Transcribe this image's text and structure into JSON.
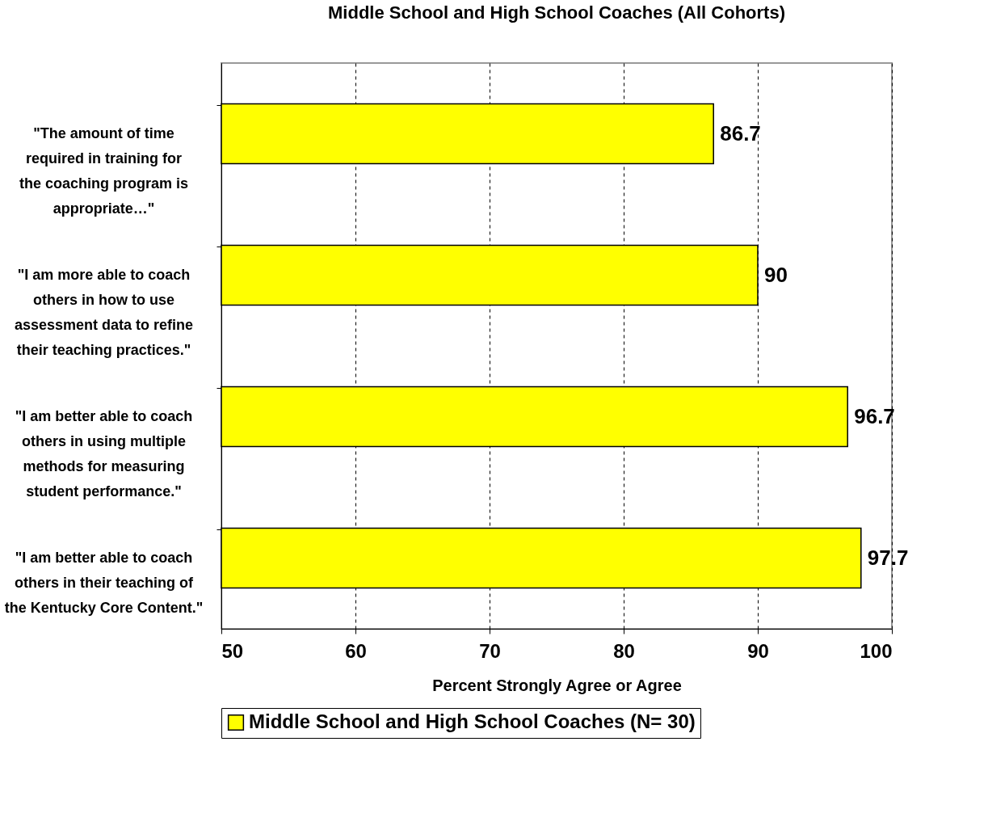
{
  "chart_data": {
    "type": "bar",
    "orientation": "horizontal",
    "title": "Middle School and High School Coaches (All Cohorts)",
    "xlabel": "Percent Strongly Agree or Agree",
    "categories": [
      "\"The amount of time required in training for the coaching program is appropriate…\"",
      "\"I am more able to coach others in how to use assessment data to refine their teaching practices.\"",
      "\"I am better able to coach others in using multiple methods for measuring student performance.\"",
      "\"I am better able to coach others in their teaching of the Kentucky Core Content.\""
    ],
    "series": [
      {
        "name": "Middle School and High School Coaches (N= 30)",
        "color": "#ffff00",
        "values": [
          86.7,
          90,
          96.7,
          97.7
        ]
      }
    ],
    "xlim": [
      50,
      100
    ],
    "xticks": [
      50,
      60,
      70,
      80,
      90,
      100
    ],
    "grid": "x",
    "legend": "bottom",
    "data_labels": true
  }
}
